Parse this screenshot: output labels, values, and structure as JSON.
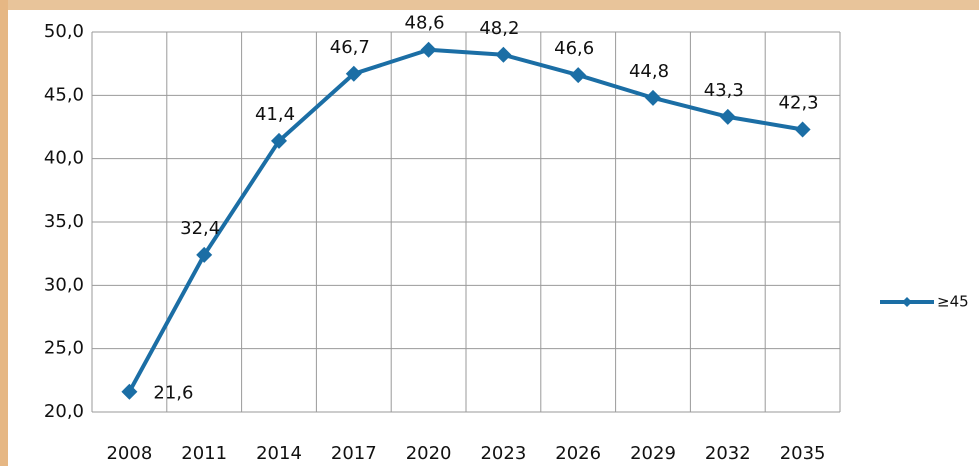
{
  "chart_data": {
    "type": "line",
    "categories": [
      "2008",
      "2011",
      "2014",
      "2017",
      "2020",
      "2023",
      "2026",
      "2029",
      "2032",
      "2035"
    ],
    "series": [
      {
        "name": "≥45",
        "color": "#1b6ea5",
        "values": [
          21.6,
          32.4,
          41.4,
          46.7,
          48.6,
          48.2,
          46.6,
          44.8,
          43.3,
          42.3
        ],
        "value_labels": [
          "21,6",
          "32,4",
          "41,4",
          "46,7",
          "48,6",
          "48,2",
          "46,6",
          "44,8",
          "43,3",
          "42,3"
        ]
      }
    ],
    "ylim": [
      20,
      50
    ],
    "yticks": [
      {
        "value": 20,
        "label": "20,0"
      },
      {
        "value": 25,
        "label": "25,0"
      },
      {
        "value": 30,
        "label": "30,0"
      },
      {
        "value": 35,
        "label": "35,0"
      },
      {
        "value": 40,
        "label": "40,0"
      },
      {
        "value": 45,
        "label": "45,0"
      },
      {
        "value": 50,
        "label": "50,0"
      }
    ],
    "grid": true
  }
}
